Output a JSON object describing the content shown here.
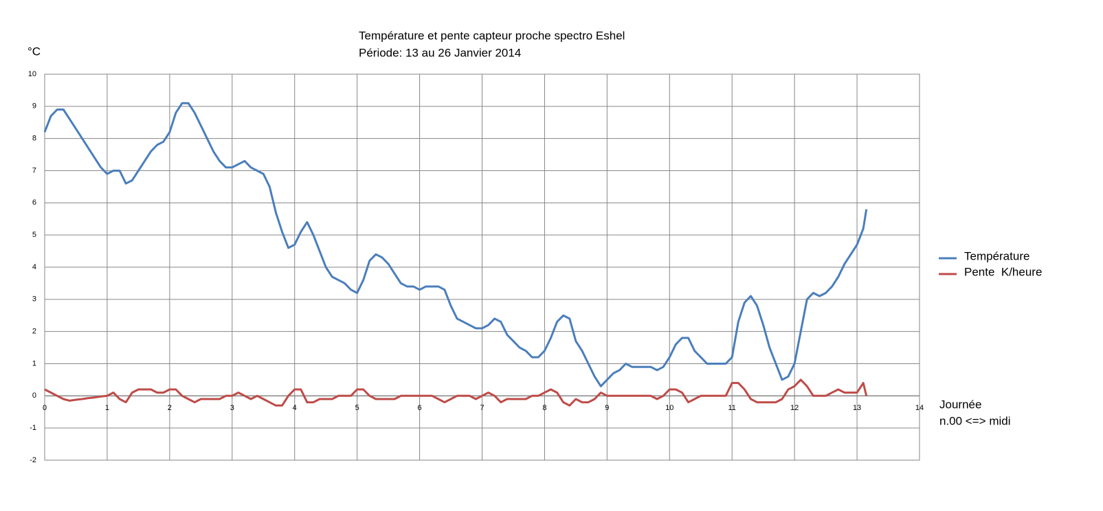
{
  "chart_data": {
    "type": "line",
    "title": "Température et pente capteur proche spectro Eshel",
    "subtitle": "Période: 13 au 26 Janvier 2014",
    "ylabel": "°C",
    "xlabel": [
      "Journée",
      "n.00 <=> midi"
    ],
    "x": [
      0,
      0.1,
      0.2,
      0.3,
      0.4,
      0.5,
      0.6,
      0.7,
      0.8,
      0.9,
      1,
      1.1,
      1.2,
      1.3,
      1.4,
      1.5,
      1.6,
      1.7,
      1.8,
      1.9,
      2,
      2.1,
      2.2,
      2.3,
      2.4,
      2.5,
      2.6,
      2.7,
      2.8,
      2.9,
      3,
      3.1,
      3.2,
      3.3,
      3.4,
      3.5,
      3.6,
      3.7,
      3.8,
      3.9,
      4,
      4.1,
      4.2,
      4.3,
      4.4,
      4.5,
      4.6,
      4.7,
      4.8,
      4.9,
      5,
      5.1,
      5.2,
      5.3,
      5.4,
      5.5,
      5.6,
      5.7,
      5.8,
      5.9,
      6,
      6.1,
      6.2,
      6.3,
      6.4,
      6.5,
      6.6,
      6.7,
      6.8,
      6.9,
      7,
      7.1,
      7.2,
      7.3,
      7.4,
      7.5,
      7.6,
      7.7,
      7.8,
      7.9,
      8,
      8.1,
      8.2,
      8.3,
      8.4,
      8.5,
      8.6,
      8.7,
      8.8,
      8.9,
      9,
      9.1,
      9.2,
      9.3,
      9.4,
      9.5,
      9.6,
      9.7,
      9.8,
      9.9,
      10,
      10.1,
      10.2,
      10.3,
      10.4,
      10.5,
      10.6,
      10.7,
      10.8,
      10.9,
      11,
      11.1,
      11.2,
      11.3,
      11.4,
      11.5,
      11.6,
      11.7,
      11.8,
      11.9,
      12,
      12.1,
      12.2,
      12.3,
      12.4,
      12.5,
      12.6,
      12.7,
      12.8,
      12.9,
      13,
      13.1,
      13.15
    ],
    "series": [
      {
        "name": "Température",
        "color": "#4a7ebb",
        "values": [
          8.2,
          8.7,
          8.9,
          8.9,
          8.6,
          8.3,
          8.0,
          7.7,
          7.4,
          7.1,
          6.9,
          7.0,
          7.0,
          6.6,
          6.7,
          7.0,
          7.3,
          7.6,
          7.8,
          7.9,
          8.2,
          8.8,
          9.1,
          9.1,
          8.8,
          8.4,
          8.0,
          7.6,
          7.3,
          7.1,
          7.1,
          7.2,
          7.3,
          7.1,
          7.0,
          6.9,
          6.5,
          5.7,
          5.1,
          4.6,
          4.7,
          5.1,
          5.4,
          5.0,
          4.5,
          4.0,
          3.7,
          3.6,
          3.5,
          3.3,
          3.2,
          3.6,
          4.2,
          4.4,
          4.3,
          4.1,
          3.8,
          3.5,
          3.4,
          3.4,
          3.3,
          3.4,
          3.4,
          3.4,
          3.3,
          2.8,
          2.4,
          2.3,
          2.2,
          2.1,
          2.1,
          2.2,
          2.4,
          2.3,
          1.9,
          1.7,
          1.5,
          1.4,
          1.2,
          1.2,
          1.4,
          1.8,
          2.3,
          2.5,
          2.4,
          1.7,
          1.4,
          1.0,
          0.6,
          0.3,
          0.5,
          0.7,
          0.8,
          1.0,
          0.9,
          0.9,
          0.9,
          0.9,
          0.8,
          0.9,
          1.2,
          1.6,
          1.8,
          1.8,
          1.4,
          1.2,
          1.0,
          1.0,
          1.0,
          1.0,
          1.2,
          2.3,
          2.9,
          3.1,
          2.8,
          2.2,
          1.5,
          1.0,
          0.5,
          0.6,
          1.0,
          2.0,
          3.0,
          3.2,
          3.1,
          3.2,
          3.4,
          3.7,
          4.1,
          4.4,
          4.7,
          5.2,
          5.8
        ]
      },
      {
        "name": "Pente  K/heure",
        "color": "#be4b48",
        "values": [
          0.2,
          0.1,
          0.0,
          -0.1,
          -0.15,
          -0.12,
          -0.1,
          -0.07,
          -0.05,
          -0.02,
          0.0,
          0.1,
          -0.1,
          -0.2,
          0.1,
          0.2,
          0.2,
          0.2,
          0.1,
          0.1,
          0.2,
          0.2,
          0.0,
          -0.1,
          -0.2,
          -0.1,
          -0.1,
          -0.1,
          -0.1,
          0.0,
          0.0,
          0.1,
          0.0,
          -0.1,
          0.0,
          -0.1,
          -0.2,
          -0.3,
          -0.3,
          0.0,
          0.2,
          0.2,
          -0.2,
          -0.2,
          -0.1,
          -0.1,
          -0.1,
          0.0,
          0.0,
          0.0,
          0.2,
          0.2,
          0.0,
          -0.1,
          -0.1,
          -0.1,
          -0.1,
          0.0,
          0.0,
          0.0,
          0.0,
          0.0,
          0.0,
          -0.1,
          -0.2,
          -0.1,
          0.0,
          0.0,
          0.0,
          -0.1,
          0.0,
          0.1,
          0.0,
          -0.2,
          -0.1,
          -0.1,
          -0.1,
          -0.1,
          0.0,
          0.0,
          0.1,
          0.2,
          0.1,
          -0.2,
          -0.3,
          -0.1,
          -0.2,
          -0.2,
          -0.1,
          0.1,
          0.0,
          0.0,
          0.0,
          0.0,
          0.0,
          0.0,
          0.0,
          0.0,
          -0.1,
          0.0,
          0.2,
          0.2,
          0.1,
          -0.2,
          -0.1,
          0.0,
          0.0,
          0.0,
          0.0,
          0.0,
          0.4,
          0.4,
          0.2,
          -0.1,
          -0.2,
          -0.2,
          -0.2,
          -0.2,
          -0.1,
          0.2,
          0.3,
          0.5,
          0.3,
          0.0,
          0.0,
          0.0,
          0.1,
          0.2,
          0.1,
          0.1,
          0.1,
          0.4,
          0.0
        ]
      }
    ],
    "xlim": [
      0,
      14
    ],
    "xticks": [
      0,
      1,
      2,
      3,
      4,
      5,
      6,
      7,
      8,
      9,
      10,
      11,
      12,
      13,
      14
    ],
    "ylim": [
      -2,
      10
    ],
    "yticks": [
      -2,
      -1,
      0,
      1,
      2,
      3,
      4,
      5,
      6,
      7,
      8,
      9,
      10
    ],
    "grid": true,
    "legend": "right"
  }
}
